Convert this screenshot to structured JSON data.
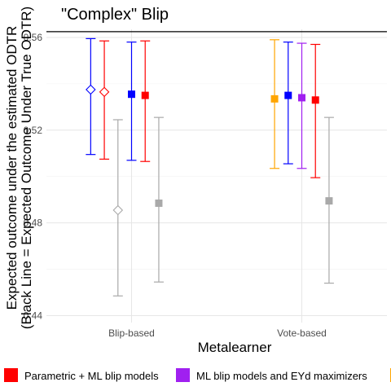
{
  "chart_data": {
    "type": "errorbar-dot",
    "title": "\"Complex\" Blip",
    "xlabel": "Metalearner",
    "ylabel_lines": [
      "Expected outcome under the estimated ODTR",
      "(Black Line = Expected Outcome Under True ODTR)"
    ],
    "categories": [
      "Blip-based",
      "Vote-based"
    ],
    "ylim": [
      0.437,
      0.5635
    ],
    "yticks": [
      0.44,
      0.48,
      0.52,
      0.56
    ],
    "ytick_labels": [
      "0.44",
      "0.48",
      "0.52",
      "0.56"
    ],
    "reference_line": 0.5625,
    "grid": true,
    "legend_position": "bottom",
    "legend": [
      {
        "label": "Parametric + ML blip models",
        "color": "#ff0000"
      },
      {
        "label": "ML blip models and EYd maximizers",
        "color": "#a020f0"
      },
      {
        "label": "",
        "color": "#ffa500"
      }
    ],
    "points": [
      {
        "category": "Blip-based",
        "offset": -0.24,
        "shape": "diamond-open",
        "color": "#0000ff",
        "y": 0.5375,
        "ymin": 0.5095,
        "ymax": 0.5595
      },
      {
        "category": "Blip-based",
        "offset": -0.16,
        "shape": "diamond-open",
        "color": "#ff0000",
        "y": 0.5365,
        "ymin": 0.5075,
        "ymax": 0.5585
      },
      {
        "category": "Blip-based",
        "offset": -0.08,
        "shape": "diamond-open",
        "color": "#a9a9a9",
        "y": 0.4855,
        "ymin": 0.4485,
        "ymax": 0.5245
      },
      {
        "category": "Blip-based",
        "offset": 0.0,
        "shape": "square",
        "color": "#0000ff",
        "y": 0.5355,
        "ymin": 0.507,
        "ymax": 0.558
      },
      {
        "category": "Blip-based",
        "offset": 0.08,
        "shape": "square",
        "color": "#ff0000",
        "y": 0.535,
        "ymin": 0.5065,
        "ymax": 0.5585
      },
      {
        "category": "Blip-based",
        "offset": 0.16,
        "shape": "square",
        "color": "#a9a9a9",
        "y": 0.4885,
        "ymin": 0.4545,
        "ymax": 0.5255
      },
      {
        "category": "Vote-based",
        "offset": -0.16,
        "shape": "square",
        "color": "#ffa500",
        "y": 0.5335,
        "ymin": 0.5035,
        "ymax": 0.559
      },
      {
        "category": "Vote-based",
        "offset": -0.08,
        "shape": "square",
        "color": "#0000ff",
        "y": 0.535,
        "ymin": 0.5055,
        "ymax": 0.558
      },
      {
        "category": "Vote-based",
        "offset": 0.0,
        "shape": "square",
        "color": "#a020f0",
        "y": 0.534,
        "ymin": 0.5035,
        "ymax": 0.5575
      },
      {
        "category": "Vote-based",
        "offset": 0.08,
        "shape": "square",
        "color": "#ff0000",
        "y": 0.533,
        "ymin": 0.4995,
        "ymax": 0.557
      },
      {
        "category": "Vote-based",
        "offset": 0.16,
        "shape": "square",
        "color": "#a9a9a9",
        "y": 0.4895,
        "ymin": 0.454,
        "ymax": 0.5255
      }
    ]
  }
}
